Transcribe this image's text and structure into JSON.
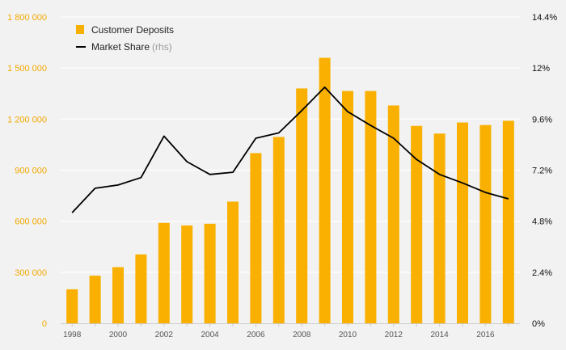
{
  "colors": {
    "bar": "#f9b000",
    "line": "#000000",
    "left_axis_text": "#f2a900",
    "right_axis_text": "#111111",
    "gridline": "#ffffff",
    "background": "#f2f2f2"
  },
  "legend": {
    "deposits_label": "Customer Deposits",
    "share_label": "Market Share",
    "share_note": "(rhs)"
  },
  "chart_data": {
    "type": "bar+line",
    "categories": [
      "1998",
      "1999",
      "2000",
      "2001",
      "2002",
      "2003",
      "2004",
      "2005",
      "2006",
      "2007",
      "2008",
      "2009",
      "2010",
      "2011",
      "2012",
      "2013",
      "2014",
      "2015",
      "2016",
      "2017"
    ],
    "x_tick_labels": [
      "1998",
      "2000",
      "2002",
      "2004",
      "2006",
      "2008",
      "2010",
      "2012",
      "2014",
      "2016"
    ],
    "series": [
      {
        "name": "Customer Deposits",
        "type": "bar",
        "axis": "left",
        "values": [
          200000,
          280000,
          330000,
          405000,
          590000,
          575000,
          585000,
          715000,
          1000000,
          1095000,
          1380000,
          1560000,
          1365000,
          1365000,
          1280000,
          1160000,
          1115000,
          1180000,
          1165000,
          1190000
        ]
      },
      {
        "name": "Market Share",
        "type": "line",
        "axis": "right",
        "values": [
          5.2,
          6.35,
          6.5,
          6.85,
          8.8,
          7.6,
          7.0,
          7.1,
          8.7,
          8.95,
          10.0,
          11.1,
          9.95,
          9.3,
          8.7,
          7.7,
          7.0,
          6.6,
          6.15,
          5.85
        ]
      }
    ],
    "y_left": {
      "min": 0,
      "max": 1800000,
      "tick_labels": [
        "0",
        "300 000",
        "600 000",
        "900 000",
        "1 200 000",
        "1 500 000",
        "1 800 000"
      ]
    },
    "y_right": {
      "min": 0,
      "max": 14.4,
      "tick_labels": [
        "0%",
        "2.4%",
        "4.8%",
        "7.2%",
        "9.6%",
        "12%",
        "14.4%"
      ]
    },
    "grid": true,
    "legend_position": "top-left"
  }
}
